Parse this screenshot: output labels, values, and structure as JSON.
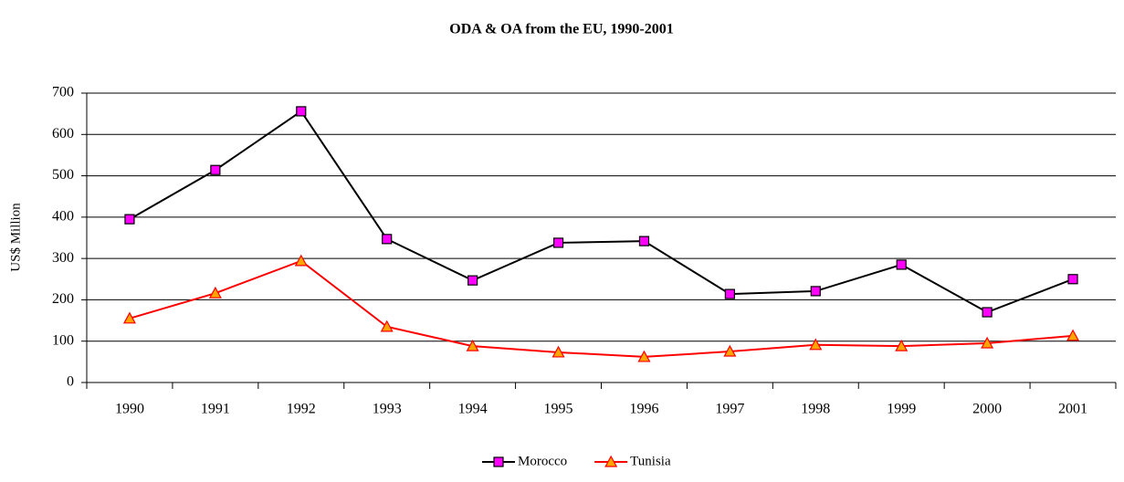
{
  "chart_data": {
    "type": "line",
    "title": "ODA & OA from the EU, 1990-2001",
    "y_label": "US$ Million",
    "categories": [
      "1990",
      "1991",
      "1992",
      "1993",
      "1994",
      "1995",
      "1996",
      "1997",
      "1998",
      "1999",
      "2000",
      "2001"
    ],
    "series": [
      {
        "name": "Morocco",
        "color": "#000000",
        "marker": "square",
        "marker_color": "#ff00ff",
        "values": [
          395,
          514,
          656,
          347,
          247,
          338,
          342,
          214,
          221,
          285,
          170,
          250
        ]
      },
      {
        "name": "Tunisia",
        "color": "#ff0000",
        "marker": "triangle",
        "marker_color": "#ffa500",
        "values": [
          155,
          216,
          294,
          135,
          88,
          73,
          62,
          75,
          91,
          88,
          95,
          113
        ]
      }
    ],
    "ylim": [
      0,
      700
    ],
    "yticks": [
      0,
      100,
      200,
      300,
      400,
      500,
      600,
      700
    ],
    "grid": true,
    "legend": "bottom"
  }
}
